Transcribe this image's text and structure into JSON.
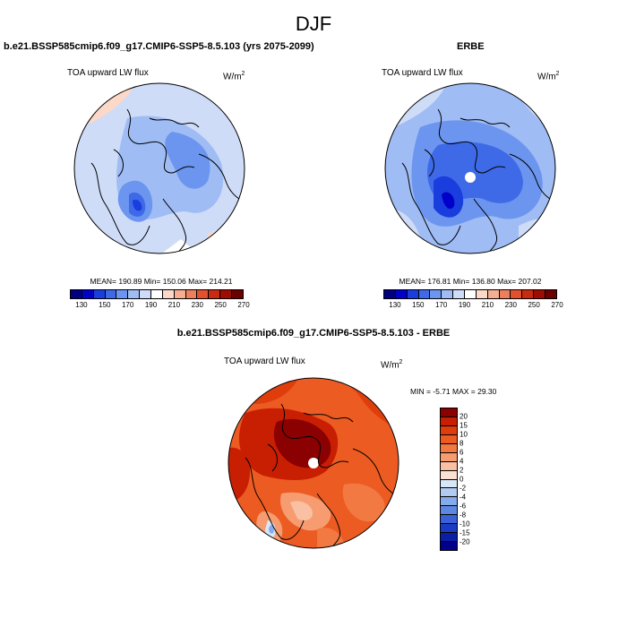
{
  "main_title": "DJF",
  "panels": {
    "model": {
      "title": "b.e21.BSSP585cmip6.f09_g17.CMIP6-SSP5-8.5.103 (yrs 2075-2099)",
      "variable": "TOA upward LW flux",
      "units_base": "W/m",
      "units_exp": "2",
      "stats": "MEAN= 190.89  Min= 150.06  Max= 214.21",
      "mean": 190.89,
      "min": 150.06,
      "max": 214.21
    },
    "obs": {
      "title": "ERBE",
      "variable": "TOA upward LW flux",
      "units_base": "W/m",
      "units_exp": "2",
      "stats": "MEAN= 176.81  Min= 136.80  Max= 207.02",
      "mean": 176.81,
      "min": 136.8,
      "max": 207.02
    },
    "diff": {
      "title": "b.e21.BSSP585cmip6.f09_g17.CMIP6-SSP5-8.5.103 - ERBE",
      "variable": "TOA upward LW flux",
      "units_base": "W/m",
      "units_exp": "2",
      "stats": "MIN =  -5.71 MAX =  29.30",
      "min": -5.71,
      "max": 29.3
    }
  },
  "colorbar_abs": {
    "labels": [
      "130",
      "150",
      "170",
      "190",
      "210",
      "230",
      "250",
      "270"
    ],
    "colors": [
      "#00007f",
      "#0000c8",
      "#1a3ddd",
      "#3e6ae8",
      "#6c95ef",
      "#9fbcf4",
      "#cfdcf8",
      "#ffffff",
      "#fbd8c8",
      "#f5ae92",
      "#ee7f5c",
      "#e2502e",
      "#c92a10",
      "#9e0d03",
      "#6b0000"
    ]
  },
  "colorbar_diff": {
    "labels": [
      "20",
      "15",
      "10",
      "8",
      "6",
      "4",
      "2",
      "0",
      "-2",
      "-4",
      "-6",
      "-8",
      "-10",
      "-15",
      "-20"
    ],
    "colors": [
      "#8b0000",
      "#c81e02",
      "#e03d0c",
      "#ec5b22",
      "#f27a42",
      "#f69c70",
      "#f9c0a4",
      "#fbe1d3",
      "#d8e6f6",
      "#b2cbf1",
      "#86abea",
      "#5d88e2",
      "#3a62d6",
      "#1a3cc4",
      "#0a1ea6",
      "#00008b"
    ]
  }
}
